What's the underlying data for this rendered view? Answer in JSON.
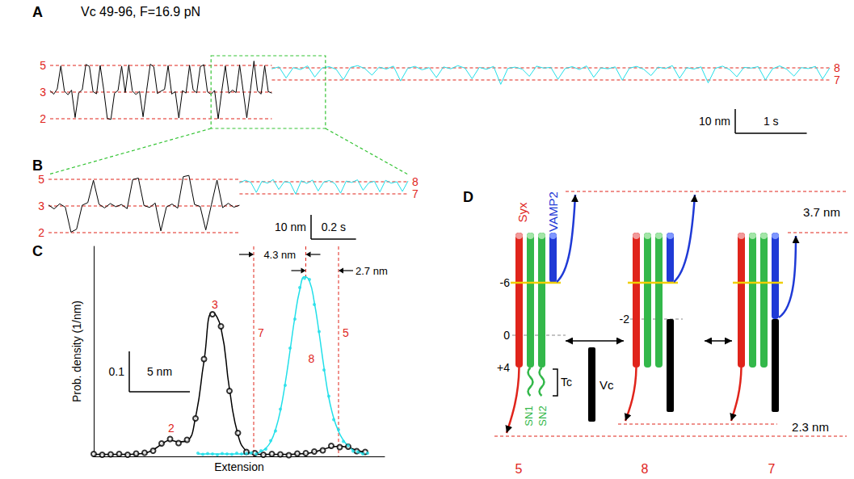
{
  "chart_data": [
    {
      "panel": "A",
      "type": "line",
      "title": "Vc 49-96, F=16.9 pN",
      "tick_labels": false,
      "grid": false,
      "xlim": [
        0,
        10.9
      ],
      "ylim": [
        -15,
        15
      ],
      "series": [
        {
          "color": "#000000",
          "x": [
            0,
            0.05,
            0.1,
            0.15,
            0.2,
            0.25,
            0.3,
            0.35,
            0.4,
            0.45,
            0.5,
            0.55,
            0.6,
            0.65,
            0.7,
            0.75,
            0.8,
            0.85,
            0.9,
            0.95,
            1,
            1.05,
            1.1,
            1.15,
            1.2,
            1.25,
            1.3,
            1.35,
            1.4,
            1.45,
            1.5,
            1.55,
            1.6,
            1.65,
            1.7,
            1.75,
            1.8,
            1.85,
            1.9,
            1.95,
            2,
            2.05,
            2.1,
            2.15,
            2.2,
            2.25,
            2.3,
            2.35,
            2.4,
            2.45,
            2.5,
            2.55,
            2.6,
            2.65,
            2.7,
            2.75,
            2.8,
            2.85,
            2.9,
            2.95,
            3,
            3.05,
            3.1
          ],
          "values": [
            0.6,
            -0.9,
            1.3,
            10.8,
            0.4,
            -1.1,
            0.8,
            -10.5,
            -0.3,
            1.0,
            11.4,
            10.6,
            0.2,
            -0.7,
            11.0,
            0.9,
            -10.9,
            -11.3,
            -0.5,
            0.7,
            10.7,
            -0.2,
            11.2,
            0.5,
            -1.0,
            0.3,
            -10.2,
            0.8,
            11.5,
            10.4,
            -0.6,
            0.4,
            1.1,
            10.9,
            -0.8,
            0.2,
            -10.7,
            0.6,
            -0.4,
            11.1,
            0.9,
            -0.3,
            10.5,
            11.3,
            0.1,
            -0.9,
            0.7,
            -11.0,
            0.4,
            10.8,
            -0.5,
            0.8,
            -0.2,
            11.2,
            0.3,
            -10.6,
            0.6,
            12.8,
            0.5,
            -0.8,
            10.9,
            0.2,
            -0.4
          ],
          "levels": [
            {
              "label": "5",
              "value": 11
            },
            {
              "label": "3",
              "value": 0
            },
            {
              "label": "2",
              "value": -11
            }
          ]
        },
        {
          "color": "#21dfe9",
          "x": [
            3.1,
            3.2,
            3.3,
            3.4,
            3.5,
            3.6,
            3.7,
            3.8,
            3.9,
            4,
            4.1,
            4.2,
            4.3,
            4.4,
            4.5,
            4.6,
            4.7,
            4.8,
            4.9,
            5,
            5.1,
            5.2,
            5.3,
            5.4,
            5.5,
            5.6,
            5.7,
            5.8,
            5.9,
            6,
            6.1,
            6.2,
            6.3,
            6.4,
            6.5,
            6.6,
            6.7,
            6.8,
            6.9,
            7,
            7.1,
            7.2,
            7.3,
            7.4,
            7.5,
            7.6,
            7.7,
            7.8,
            7.9,
            8,
            8.1,
            8.2,
            8.3,
            8.4,
            8.5,
            8.6,
            8.7,
            8.8,
            8.9,
            9,
            9.1,
            9.2,
            9.3,
            9.4,
            9.5,
            9.6,
            9.7,
            9.8,
            9.9,
            10,
            10.1,
            10.2,
            10.3,
            10.4,
            10.5,
            10.6,
            10.7,
            10.8,
            10.9
          ],
          "values": [
            9.6,
            10.4,
            5.8,
            10.1,
            9.3,
            10.8,
            6.2,
            9.9,
            10.5,
            9.4,
            5.1,
            10.2,
            10.9,
            9.7,
            7.0,
            10.3,
            9.5,
            10.7,
            4.6,
            9.8,
            10.6,
            9.2,
            10.1,
            6.0,
            10.4,
            9.6,
            10.9,
            9.9,
            5.5,
            10.2,
            9.4,
            10.6,
            3.2,
            9.8,
            10.3,
            9.5,
            6.5,
            10.7,
            9.9,
            10.2,
            5.3,
            9.7,
            10.5,
            9.3,
            10.8,
            6.1,
            10.0,
            9.6,
            10.4,
            4.9,
            9.9,
            10.6,
            9.4,
            6.8,
            10.3,
            9.7,
            10.9,
            5.7,
            10.1,
            9.5,
            10.4,
            3.8,
            9.8,
            10.7,
            9.3,
            6.3,
            10.2,
            9.9,
            10.5,
            5.0,
            9.6,
            10.8,
            9.4,
            6.6,
            10.1,
            9.7,
            10.6,
            5.4,
            10.0
          ],
          "levels": [
            {
              "label": "8",
              "value": 10
            },
            {
              "label": "7",
              "value": 5
            }
          ]
        }
      ],
      "scale_bars": [
        {
          "axis": "y",
          "value": 10,
          "label": "10 nm"
        },
        {
          "axis": "x",
          "value": 1,
          "label": "1 s"
        }
      ]
    },
    {
      "panel": "B",
      "type": "line",
      "tick_labels": false,
      "grid": false,
      "xlim": [
        2.25,
        3.85
      ],
      "ylim": [
        -13,
        13
      ],
      "series": [
        {
          "color": "#000000",
          "x": [
            2.25,
            2.275,
            2.3,
            2.325,
            2.35,
            2.375,
            2.4,
            2.425,
            2.45,
            2.475,
            2.5,
            2.525,
            2.55,
            2.575,
            2.6,
            2.625,
            2.65,
            2.675,
            2.7,
            2.725,
            2.75,
            2.775,
            2.8,
            2.825,
            2.85,
            2.875,
            2.9,
            2.925,
            2.95,
            2.975,
            3,
            3.025,
            3.05,
            3.075,
            3.1
          ],
          "values": [
            0.4,
            -1.2,
            0.9,
            -0.5,
            -10.8,
            -9.6,
            0.3,
            1.4,
            10.6,
            0.7,
            -0.8,
            1.0,
            -0.3,
            0.6,
            -1.1,
            10.9,
            11.5,
            0.2,
            -0.6,
            1.2,
            -10.3,
            -0.4,
            0.8,
            -0.9,
            12.1,
            12.6,
            0.6,
            -0.2,
            -9.9,
            0.5,
            10.7,
            -0.7,
            1.1,
            -0.5,
            0.3
          ],
          "levels": [
            {
              "label": "5",
              "value": 11
            },
            {
              "label": "3",
              "value": 0
            },
            {
              "label": "2",
              "value": -11
            }
          ]
        },
        {
          "color": "#21dfe9",
          "x": [
            3.1,
            3.125,
            3.15,
            3.175,
            3.2,
            3.225,
            3.25,
            3.275,
            3.3,
            3.325,
            3.35,
            3.375,
            3.4,
            3.425,
            3.45,
            3.475,
            3.5,
            3.525,
            3.55,
            3.575,
            3.6,
            3.625,
            3.65,
            3.675,
            3.7,
            3.725,
            3.75,
            3.775,
            3.8,
            3.825,
            3.85
          ],
          "values": [
            9.5,
            10.6,
            9.8,
            5.6,
            10.2,
            9.4,
            10.9,
            6.8,
            10.1,
            9.6,
            4.9,
            10.4,
            9.3,
            10.7,
            6.2,
            9.9,
            10.5,
            9.2,
            5.3,
            10.3,
            9.7,
            10.8,
            6.5,
            9.5,
            10.2,
            5.8,
            10.6,
            9.4,
            10.0,
            6.0,
            10.3
          ],
          "levels": [
            {
              "label": "8",
              "value": 10
            },
            {
              "label": "7",
              "value": 5
            }
          ]
        }
      ],
      "scale_bars": [
        {
          "axis": "y",
          "value": 10,
          "label": "10 nm"
        },
        {
          "axis": "x",
          "value": 0.2,
          "label": "0.2 s"
        }
      ]
    },
    {
      "panel": "C",
      "type": "scatter",
      "xlabel": "Extension",
      "ylabel": "Prob. density (1/nm)",
      "tick_labels": false,
      "grid": false,
      "xlim": [
        -10,
        14
      ],
      "ylim": [
        0,
        0.52
      ],
      "series": [
        {
          "color": "#000000",
          "marker": "open_circle",
          "x": [
            -10,
            -9.3,
            -8.6,
            -7.9,
            -7.2,
            -6.5,
            -5.8,
            -5.1,
            -4.4,
            -3.7,
            -3.0,
            -2.3,
            -1.6,
            -0.9,
            -0.2,
            0.5,
            1.2,
            1.9,
            2.6,
            3.3,
            4.0,
            4.7,
            5.4,
            6.1,
            6.8,
            7.5,
            8.2,
            8.9,
            9.6,
            10.3,
            11.0,
            11.7,
            12.4
          ],
          "values": [
            0.006,
            0.004,
            0.005,
            0.006,
            0.004,
            0.007,
            0.009,
            0.014,
            0.032,
            0.043,
            0.033,
            0.041,
            0.094,
            0.241,
            0.352,
            0.322,
            0.162,
            0.058,
            0.011,
            0.008,
            0.004,
            0.006,
            0.005,
            0.003,
            0.007,
            0.008,
            0.012,
            0.015,
            0.026,
            0.023,
            0.024,
            0.013,
            0.011
          ],
          "fit": [
            0.005,
            0.005,
            0.005,
            0.005,
            0.005,
            0.006,
            0.008,
            0.016,
            0.03,
            0.04,
            0.036,
            0.039,
            0.097,
            0.236,
            0.357,
            0.318,
            0.167,
            0.054,
            0.013,
            0.006,
            0.005,
            0.005,
            0.005,
            0.005,
            0.006,
            0.007,
            0.011,
            0.017,
            0.023,
            0.025,
            0.022,
            0.015,
            0.01
          ]
        },
        {
          "color": "#21dfe9",
          "marker": "dot",
          "x": [
            -1.4,
            -1.0,
            -0.6,
            -0.2,
            0.2,
            0.6,
            1.0,
            1.4,
            1.8,
            2.2,
            2.6,
            3.0,
            3.4,
            3.8,
            4.2,
            4.6,
            5.0,
            5.4,
            5.8,
            6.2,
            6.6,
            7.0,
            7.4,
            7.8,
            8.2,
            8.6,
            9.0,
            9.4,
            9.8,
            10.2,
            10.6,
            11.0,
            11.4,
            11.8,
            12.2,
            12.6
          ],
          "values": [
            0.008,
            0.005,
            0.007,
            0.006,
            0.004,
            0.007,
            0.006,
            0.005,
            0.008,
            0.006,
            0.007,
            0.009,
            0.006,
            0.014,
            0.018,
            0.039,
            0.063,
            0.117,
            0.176,
            0.268,
            0.34,
            0.418,
            0.441,
            0.438,
            0.376,
            0.309,
            0.214,
            0.149,
            0.091,
            0.066,
            0.037,
            0.027,
            0.013,
            0.011,
            0.006,
            0.008
          ],
          "fit": [
            0.006,
            0.006,
            0.006,
            0.006,
            0.006,
            0.006,
            0.006,
            0.006,
            0.006,
            0.006,
            0.006,
            0.007,
            0.008,
            0.012,
            0.02,
            0.036,
            0.066,
            0.113,
            0.181,
            0.262,
            0.345,
            0.412,
            0.445,
            0.434,
            0.382,
            0.305,
            0.22,
            0.145,
            0.095,
            0.062,
            0.04,
            0.025,
            0.015,
            0.01,
            0.008,
            0.007
          ]
        }
      ],
      "peak_labels": [
        {
          "label": "2",
          "x": -3.6
        },
        {
          "label": "3",
          "x": 0
        }
      ],
      "levels": [
        {
          "label": "7",
          "value": 3.2
        },
        {
          "label": "8",
          "value": 7.5
        },
        {
          "label": "5",
          "value": 10.2
        }
      ],
      "distances": [
        {
          "label": "4.3 nm",
          "from": "7",
          "to": "8"
        },
        {
          "label": "2.7 nm",
          "from": "8",
          "to": "5"
        }
      ],
      "scale_bars": [
        {
          "axis": "y",
          "value": 0.1,
          "label": "0.1"
        },
        {
          "axis": "x",
          "value": 5,
          "label": "5 nm"
        }
      ]
    }
  ],
  "diagram": {
    "panel": "D",
    "helices": {
      "syntaxin": "Syx",
      "vamp2": "VAMP2",
      "snap25_n": "SN1",
      "snap25_c": "SN2"
    },
    "layers": {
      "minus6": "-6",
      "zero": "0",
      "plus4": "+4",
      "minus2": "-2"
    },
    "segments": {
      "tc": "Tc",
      "vc": "Vc"
    },
    "distances": {
      "top": "3.7 nm",
      "bottom": "2.3 nm"
    },
    "states": [
      "5",
      "8",
      "7"
    ]
  }
}
